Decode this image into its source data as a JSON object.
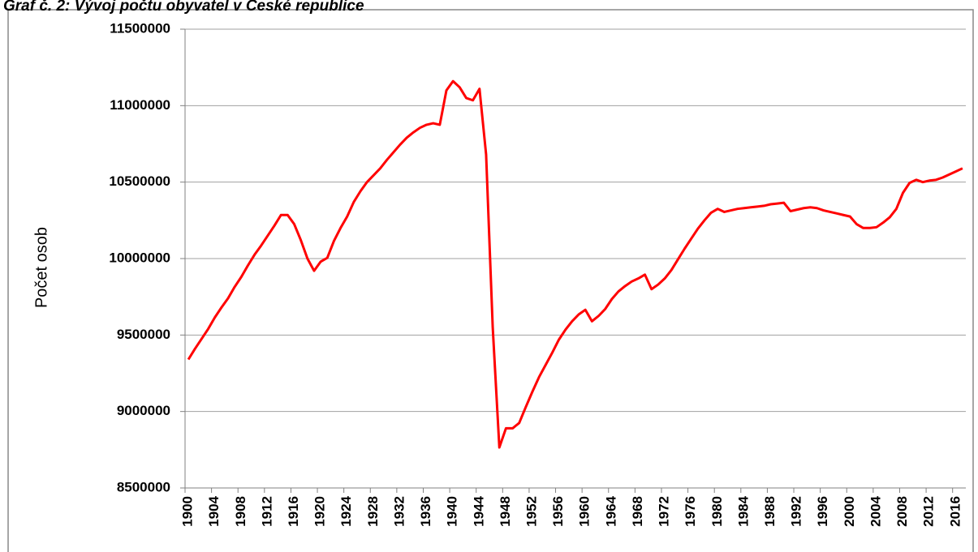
{
  "chart_data": {
    "type": "line",
    "title": "Graf č. 2: Vývoj počtu obyvatel v České republice",
    "y_label": "Počet osob",
    "categories": [
      "1900",
      null,
      null,
      null,
      "1904",
      null,
      null,
      null,
      "1908",
      null,
      null,
      null,
      "1912",
      null,
      null,
      null,
      "1916",
      null,
      null,
      null,
      "1920",
      null,
      null,
      null,
      "1924",
      null,
      null,
      null,
      "1928",
      null,
      null,
      null,
      "1932",
      null,
      null,
      null,
      "1936",
      null,
      null,
      null,
      "1940",
      null,
      null,
      null,
      "1944",
      null,
      null,
      null,
      "1948",
      null,
      null,
      null,
      "1952",
      null,
      null,
      null,
      "1956",
      null,
      null,
      null,
      "1960",
      null,
      null,
      null,
      "1964",
      null,
      null,
      null,
      "1968",
      null,
      null,
      null,
      "1972",
      null,
      null,
      null,
      "1976",
      null,
      null,
      null,
      "1980",
      null,
      null,
      null,
      "1984",
      null,
      null,
      null,
      "1988",
      null,
      null,
      null,
      "1992",
      null,
      null,
      null,
      "1996",
      null,
      null,
      null,
      "2000",
      null,
      null,
      null,
      "2004",
      null,
      null,
      null,
      "2008",
      null,
      null,
      null,
      "2012",
      null,
      null,
      null,
      "2016",
      null
    ],
    "values": [
      9340000,
      9410000,
      9475000,
      9540000,
      9615000,
      9680000,
      9740000,
      9815000,
      9880000,
      9955000,
      10025000,
      10085000,
      10150000,
      10215000,
      10285000,
      10285000,
      10225000,
      10120000,
      10000000,
      9920000,
      9980000,
      10005000,
      10115000,
      10200000,
      10275000,
      10370000,
      10440000,
      10500000,
      10545000,
      10590000,
      10645000,
      10695000,
      10745000,
      10790000,
      10825000,
      10855000,
      10875000,
      10885000,
      10875000,
      11100000,
      11160000,
      11120000,
      11050000,
      11035000,
      11110000,
      10680000,
      9550000,
      8765000,
      8890000,
      8890000,
      8925000,
      9030000,
      9130000,
      9225000,
      9305000,
      9385000,
      9470000,
      9535000,
      9590000,
      9635000,
      9665000,
      9590000,
      9625000,
      9670000,
      9735000,
      9785000,
      9820000,
      9850000,
      9870000,
      9895000,
      9800000,
      9830000,
      9870000,
      9925000,
      9995000,
      10065000,
      10130000,
      10195000,
      10250000,
      10300000,
      10325000,
      10305000,
      10315000,
      10325000,
      10330000,
      10335000,
      10340000,
      10345000,
      10355000,
      10360000,
      10365000,
      10310000,
      10320000,
      10330000,
      10335000,
      10330000,
      10315000,
      10305000,
      10295000,
      10285000,
      10275000,
      10225000,
      10200000,
      10200000,
      10205000,
      10235000,
      10270000,
      10325000,
      10430000,
      10495000,
      10515000,
      10500000,
      10510000,
      10515000,
      10530000,
      10550000,
      10570000,
      10590000
    ],
    "color": "#ff0000",
    "ylim": [
      8500000,
      11500000
    ],
    "yticks": [
      8500000,
      9000000,
      9500000,
      10000000,
      10500000,
      11000000,
      11500000
    ],
    "grid": true
  }
}
